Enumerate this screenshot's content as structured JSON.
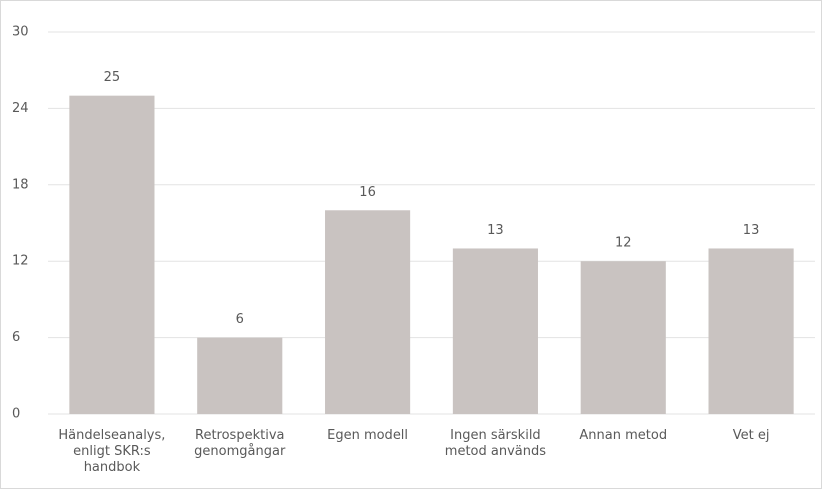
{
  "chart_data": {
    "type": "bar",
    "categories": [
      "Händelseanalys, enligt SKR:s handbok",
      "Retrospektiva genomgångar",
      "Egen modell",
      "Ingen särskild metod används",
      "Annan metod",
      "Vet ej"
    ],
    "values": [
      25,
      6,
      16,
      13,
      12,
      13
    ],
    "color": "#c9c3c1",
    "ylim": [
      0,
      30
    ],
    "yticks": [
      0,
      6,
      12,
      18,
      24,
      30
    ],
    "grid": true
  }
}
